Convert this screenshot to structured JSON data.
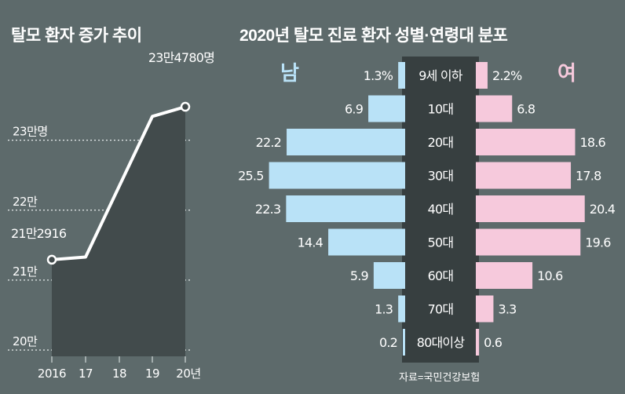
{
  "titles": {
    "left": "탈모 환자 증가 추이",
    "right": "2020년 탈모 진료 환자 성별·연령대 분포"
  },
  "source": "자료=국민건강보험",
  "chart_data": [
    {
      "type": "area",
      "title": "탈모 환자 증가 추이",
      "categories": [
        "2016",
        "17",
        "18",
        "19",
        "20년"
      ],
      "values": [
        212916,
        213300,
        null,
        233400,
        234780
      ],
      "known_labels": [
        "21만2916",
        "23만4780명"
      ],
      "y_ticks": [
        "20만",
        "21만",
        "22만",
        "23만명"
      ],
      "ylim": [
        200000,
        235000
      ]
    },
    {
      "type": "bar",
      "title": "2020년 탈모 진료 환자 성별·연령대 분포",
      "categories": [
        "9세 이하",
        "10대",
        "20대",
        "30대",
        "40대",
        "50대",
        "60대",
        "70대",
        "80대이상"
      ],
      "series": [
        {
          "name": "남",
          "values": [
            1.3,
            6.9,
            22.2,
            25.5,
            22.3,
            14.4,
            5.9,
            1.3,
            0.2
          ],
          "labels": [
            "1.3%",
            "6.9",
            "22.2",
            "25.5",
            "22.3",
            "14.4",
            "5.9",
            "1.3",
            "0.2"
          ]
        },
        {
          "name": "여",
          "values": [
            2.2,
            6.8,
            18.6,
            17.8,
            20.4,
            19.6,
            10.6,
            3.3,
            0.6
          ],
          "labels": [
            "2.2%",
            "6.8",
            "18.6",
            "17.8",
            "20.4",
            "19.6",
            "10.6",
            "3.3",
            "0.6"
          ]
        }
      ]
    }
  ],
  "colors": {
    "background": "#5d6a6b",
    "male": "#b9e2f7",
    "female": "#f6c9dc",
    "center": "#373f40",
    "area": "#424b4c"
  }
}
